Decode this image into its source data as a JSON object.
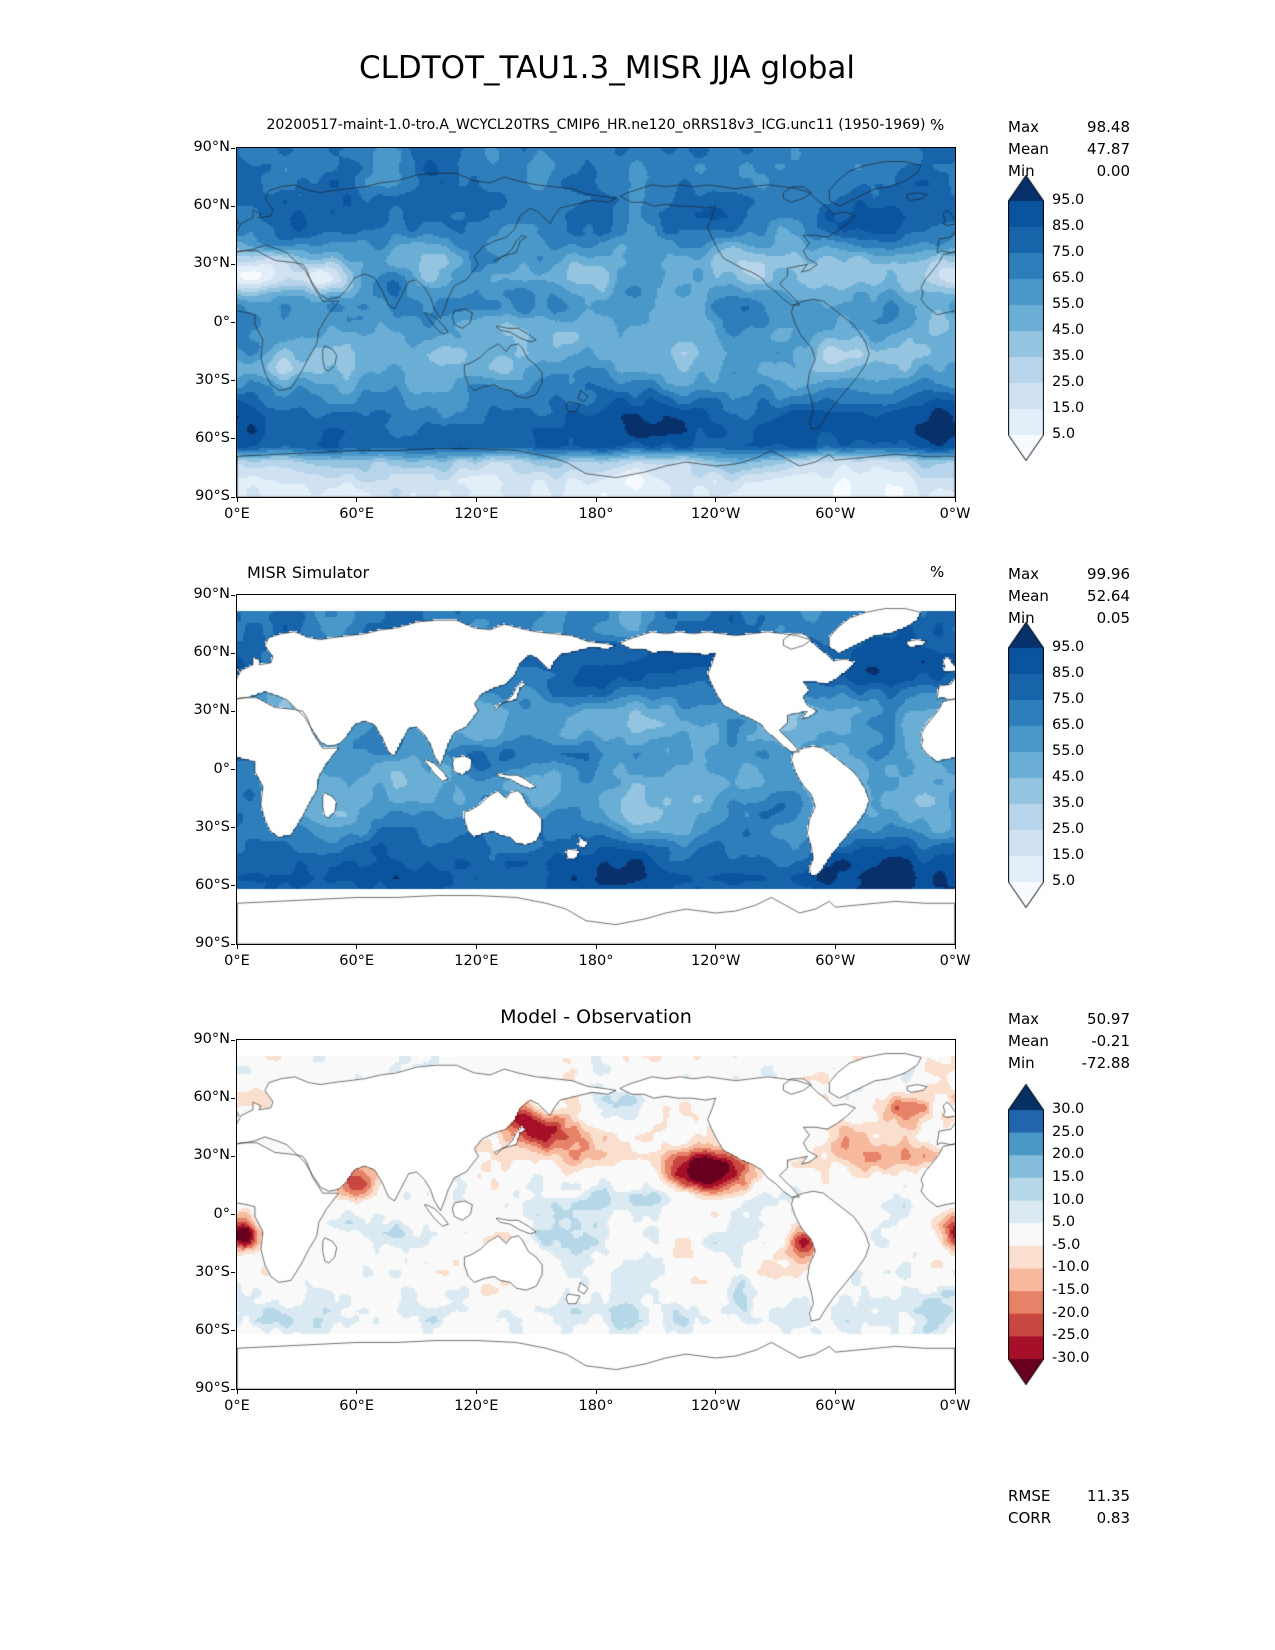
{
  "figure": {
    "title": "CLDTOT_TAU1.3_MISR JJA global"
  },
  "stats_labels": {
    "max": "Max",
    "mean": "Mean",
    "min": "Min",
    "rmse": "RMSE",
    "corr": "CORR"
  },
  "axes": {
    "x_ticks": [
      "0°E",
      "60°E",
      "120°E",
      "180°",
      "120°W",
      "60°W",
      "0°W"
    ],
    "y_ticks": [
      "90°N",
      "60°N",
      "30°N",
      "0°",
      "30°S",
      "60°S",
      "90°S"
    ]
  },
  "panels": [
    {
      "key": "model",
      "title": "20200517-maint-1.0-tro.A_WCYCL20TRS_CMIP6_HR.ne120_oRRS18v3_ICG.unc11 (1950-1969)",
      "units": "%",
      "stats": {
        "max": "98.48",
        "mean": "47.87",
        "min": "0.00"
      },
      "colorbar_ticks": [
        "95.0",
        "85.0",
        "75.0",
        "65.0",
        "55.0",
        "45.0",
        "35.0",
        "25.0",
        "15.0",
        "5.0"
      ]
    },
    {
      "key": "simulator",
      "title": "MISR Simulator",
      "units": "%",
      "stats": {
        "max": "99.96",
        "mean": "52.64",
        "min": "0.05"
      },
      "colorbar_ticks": [
        "95.0",
        "85.0",
        "75.0",
        "65.0",
        "55.0",
        "45.0",
        "35.0",
        "25.0",
        "15.0",
        "5.0"
      ]
    },
    {
      "key": "difference",
      "title": "Model - Observation",
      "stats": {
        "max": "50.97",
        "mean": "-0.21",
        "min": "-72.88"
      },
      "colorbar_ticks": [
        "30.0",
        "25.0",
        "20.0",
        "15.0",
        "10.0",
        "5.0",
        "-5.0",
        "-10.0",
        "-15.0",
        "-20.0",
        "-25.0",
        "-30.0"
      ],
      "metrics": {
        "rmse": "11.35",
        "corr": "0.83"
      }
    }
  ],
  "chart_data": {
    "type": "heatmap",
    "subtype": "global_latlon_filled_contour_maps",
    "variable": "CLDTOT_TAU1.3_MISR",
    "season": "JJA",
    "region": "global",
    "units": "%",
    "projection": "cylindrical equidistant, longitude 0°E → 360°E (0°W), latitude 90°N → 90°S",
    "lon_range": [
      0,
      360
    ],
    "lat_range": [
      -90,
      90
    ],
    "colormaps": {
      "blues11": [
        "#f7fbff",
        "#e2eef8",
        "#d0e1f2",
        "#b7d4ea",
        "#94c4df",
        "#6aaed6",
        "#4a98c9",
        "#2e7ebc",
        "#1764ab",
        "#0a539e",
        "#08306b"
      ],
      "rdbu13": [
        "#67001f",
        "#a50f27",
        "#c94741",
        "#e58267",
        "#f6b99d",
        "#fbdfce",
        "#f9f9f9",
        "#dbeaf2",
        "#b5d7e8",
        "#84bcd9",
        "#4a98c6",
        "#2166ac",
        "#053061"
      ]
    },
    "panels": [
      {
        "role": "model",
        "title": "20200517-maint-1.0-tro.A_WCYCL20TRS_CMIP6_HR.ne120_oRRS18v3_ICG.unc11 (1950-1969)",
        "max": 98.48,
        "mean": 47.87,
        "min": 0.0,
        "levels": [
          5,
          15,
          25,
          35,
          45,
          55,
          65,
          75,
          85,
          95
        ],
        "colormap": "blues11",
        "extend": "both",
        "coverage": "full globe including land"
      },
      {
        "role": "observation",
        "title": "MISR Simulator",
        "max": 99.96,
        "mean": 52.64,
        "min": 0.05,
        "levels": [
          5,
          15,
          25,
          35,
          45,
          55,
          65,
          75,
          85,
          95
        ],
        "colormap": "blues11",
        "extend": "both",
        "coverage": "ocean only; land and latitudes poleward of ~62°S / ~82°N blank"
      },
      {
        "role": "difference",
        "title": "Model - Observation",
        "max": 50.97,
        "mean": -0.21,
        "min": -72.88,
        "levels": [
          -30,
          -25,
          -20,
          -15,
          -10,
          -5,
          5,
          10,
          15,
          20,
          25,
          30
        ],
        "colormap": "rdbu13",
        "extend": "both",
        "rmse": 11.35,
        "corr": 0.83,
        "coverage": "ocean only; land blank; red = model below observation, blue = model above"
      }
    ]
  }
}
